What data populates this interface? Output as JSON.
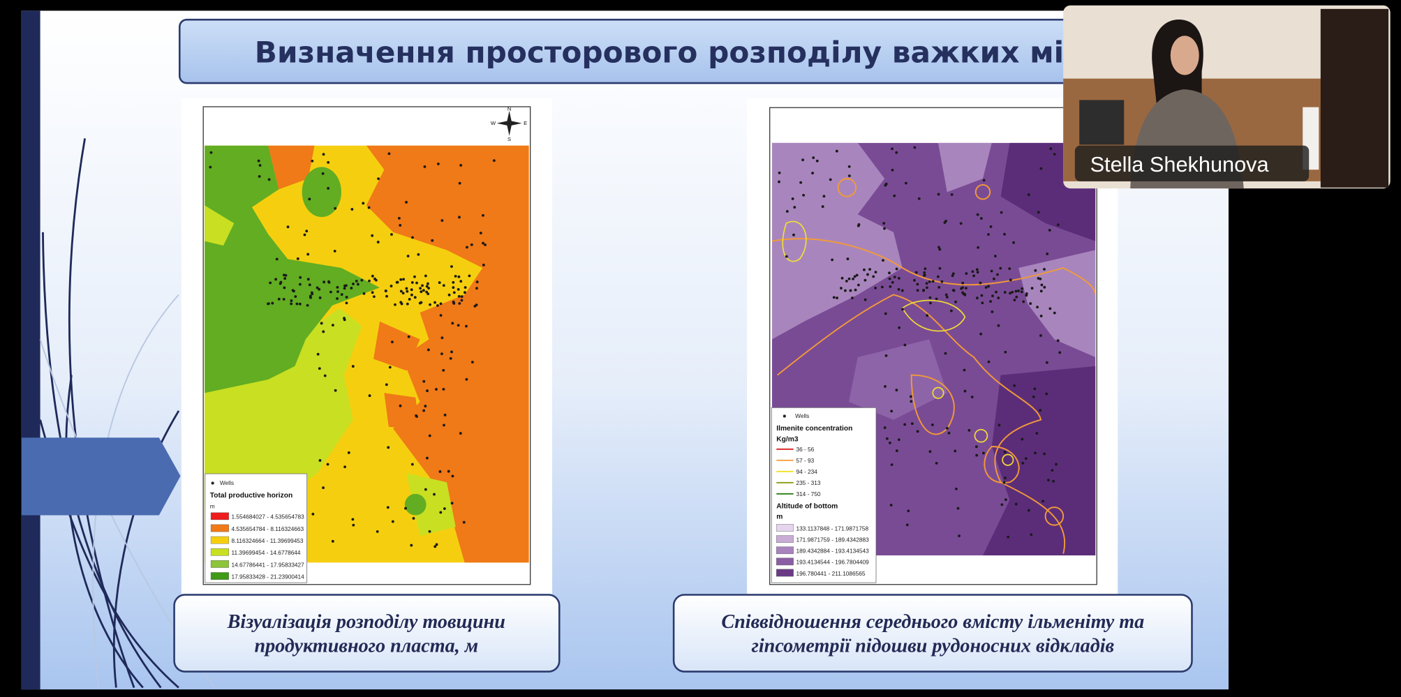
{
  "slide": {
    "title": "Визначення просторового розподілу важких мінерал",
    "left_map": {
      "compass": {
        "n": "N",
        "s": "S",
        "e": "E",
        "w": "W"
      },
      "legend": {
        "wells": "Wells",
        "title": "Total productive horizon",
        "unit": "m",
        "classes": [
          "1.554684027 - 4.535654783",
          "4.535654784 - 8.116324663",
          "8.116324664 - 11.39699453",
          "11.39699454 - 14.6778644",
          "14.67786441 - 17.95833427",
          "17.95833428 - 21.23900414"
        ]
      }
    },
    "right_map": {
      "legend": {
        "wells": "Wells",
        "concentration_title": "Ilmenite concentration",
        "concentration_unit": "Kg/m3",
        "concentration_classes": [
          "36 - 56",
          "57 - 93",
          "94 - 234",
          "235 - 313",
          "314 - 750"
        ],
        "altitude_title": "Altitude of bottom",
        "altitude_unit": "m",
        "altitude_classes": [
          "133.1137848 - 171.9871758",
          "171.9871759 - 189.4342883",
          "189.4342884 - 193.4134543",
          "193.4134544 - 196.7804409",
          "196.780441 - 211.1086565"
        ]
      }
    },
    "captions": [
      [
        "Візуалізація розподілу товщини",
        "продуктивного пласта, м"
      ],
      [
        "Співвідношення середнього вмісту ільменіту та",
        "гіпсометрії підошви рудоносних відкладів"
      ]
    ]
  },
  "video": {
    "participant_name": "Stella Shekhunova"
  }
}
